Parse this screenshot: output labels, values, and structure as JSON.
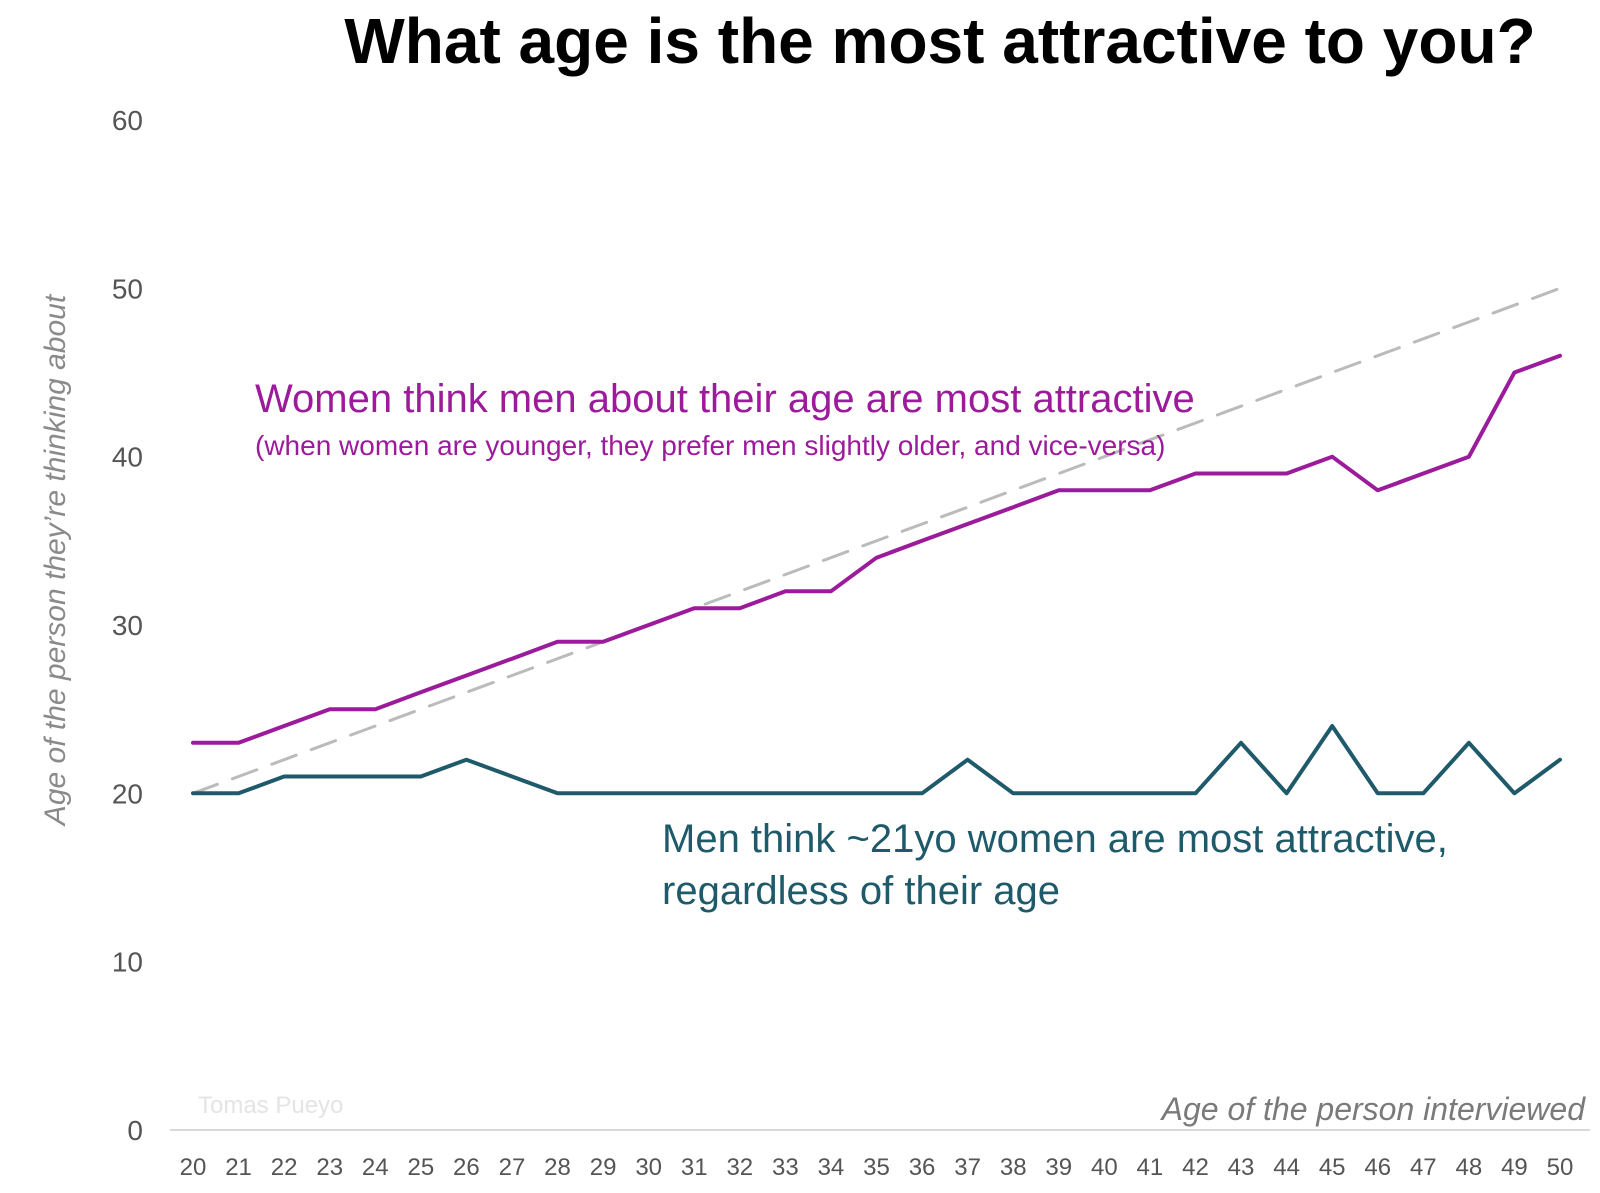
{
  "chart_data": {
    "type": "line",
    "title": "What age is the most attractive to you?",
    "xlabel": "Age of the person interviewed",
    "ylabel": "Age of the person they’re thinking about",
    "credit": "Tomas Pueyo",
    "x": [
      20,
      21,
      22,
      23,
      24,
      25,
      26,
      27,
      28,
      29,
      30,
      31,
      32,
      33,
      34,
      35,
      36,
      37,
      38,
      39,
      40,
      41,
      42,
      43,
      44,
      45,
      46,
      47,
      48,
      49,
      50
    ],
    "xlim": [
      20,
      50
    ],
    "ylim": [
      0,
      60
    ],
    "yticks": [
      0,
      10,
      20,
      30,
      40,
      50,
      60
    ],
    "grid": false,
    "series": [
      {
        "name": "Women",
        "color": "#9B1B9B",
        "style": "solid",
        "values": [
          23,
          23,
          24,
          25,
          25,
          26,
          27,
          28,
          29,
          29,
          30,
          31,
          31,
          32,
          32,
          34,
          35,
          36,
          37,
          38,
          38,
          38,
          39,
          39,
          39,
          40,
          38,
          39,
          40,
          45,
          46
        ]
      },
      {
        "name": "Men",
        "color": "#1F5A6B",
        "style": "solid",
        "values": [
          20,
          20,
          21,
          21,
          21,
          21,
          22,
          21,
          20,
          20,
          20,
          20,
          20,
          20,
          20,
          20,
          20,
          22,
          20,
          20,
          20,
          20,
          20,
          23,
          20,
          24,
          20,
          20,
          23,
          20,
          22
        ]
      },
      {
        "name": "Same age",
        "color": "#BBBBBB",
        "style": "dashed",
        "values": [
          20,
          21,
          22,
          23,
          24,
          25,
          26,
          27,
          28,
          29,
          30,
          31,
          32,
          33,
          34,
          35,
          36,
          37,
          38,
          39,
          40,
          41,
          42,
          43,
          44,
          45,
          46,
          47,
          48,
          49,
          50
        ]
      }
    ],
    "annotations": [
      {
        "series": "Women",
        "color": "#9B1B9B",
        "line1": "Women think men about their age are most attractive",
        "line2": "(when women are younger, they prefer men slightly older, and vice-versa)"
      },
      {
        "series": "Men",
        "color": "#1F5A6B",
        "line1": "Men think ~21yo women are most attractive,",
        "line2": "regardless of their age"
      }
    ]
  }
}
